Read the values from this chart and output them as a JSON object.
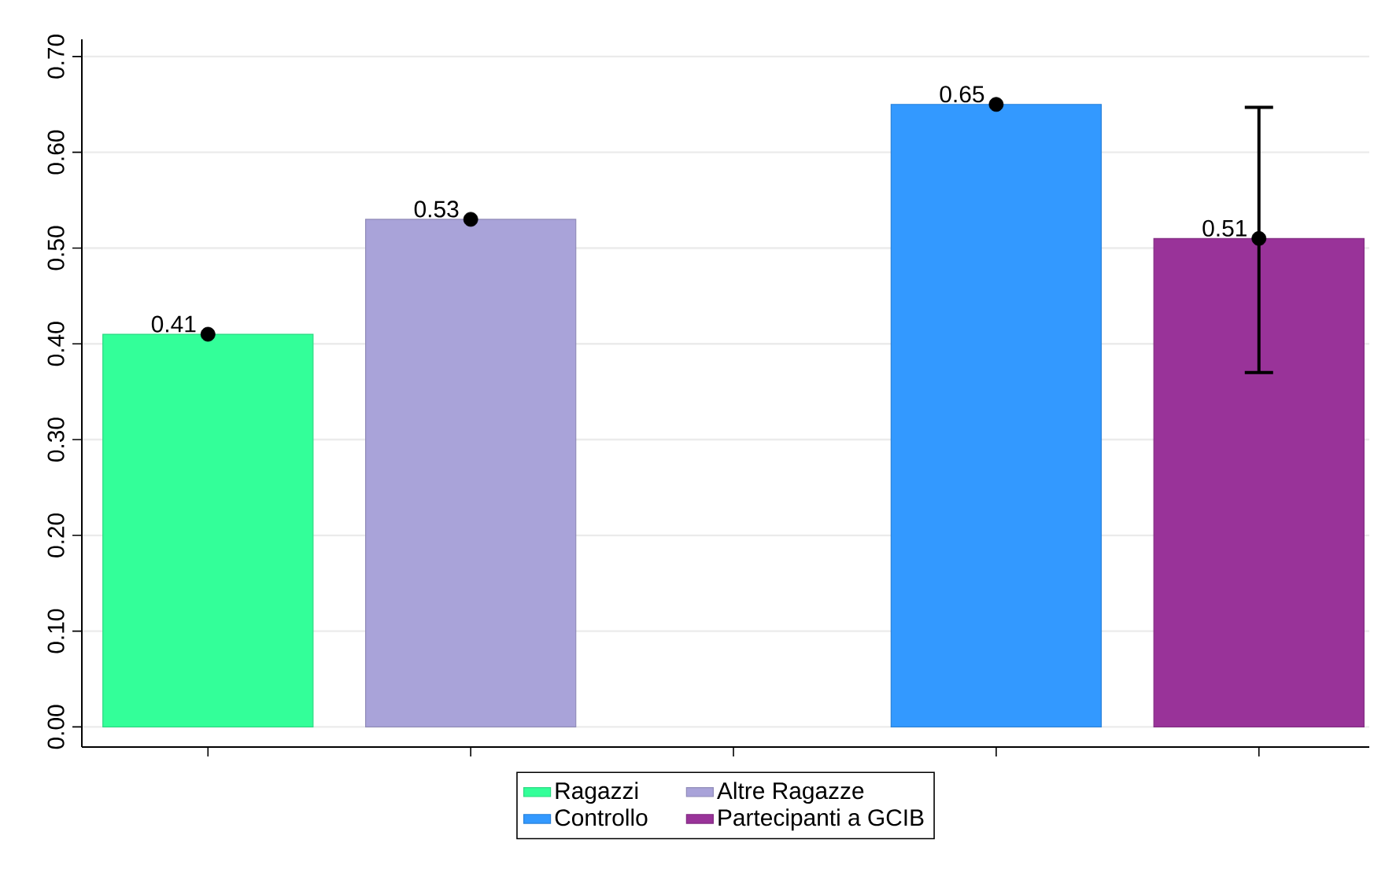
{
  "chart_data": {
    "type": "bar",
    "categories": [
      null,
      null,
      null,
      null,
      null
    ],
    "series": [
      {
        "name": "Ragazzi",
        "color": "#33ff99",
        "values": [
          0.41,
          null,
          null,
          null,
          null
        ],
        "value_labels": [
          "0.41",
          null,
          null,
          null,
          null
        ]
      },
      {
        "name": "Altre Ragazze",
        "color": "#a9a3d9",
        "values": [
          null,
          0.53,
          null,
          null,
          null
        ],
        "value_labels": [
          null,
          "0.53",
          null,
          null,
          null
        ]
      },
      {
        "name": "Controllo",
        "color": "#3399ff",
        "values": [
          null,
          null,
          null,
          0.65,
          null
        ],
        "value_labels": [
          null,
          null,
          null,
          "0.65",
          null
        ]
      },
      {
        "name": "Partecipanti a GCIB",
        "color": "#993399",
        "values": [
          null,
          null,
          null,
          null,
          0.51
        ],
        "value_labels": [
          null,
          null,
          null,
          null,
          "0.51"
        ]
      },
      {
        "type": "scatter",
        "color": "#000000",
        "values": [
          0.41,
          0.53,
          null,
          0.65,
          0.51
        ],
        "errors": [
          null,
          null,
          null,
          null,
          [
            0.37,
            0.647
          ]
        ]
      }
    ],
    "ylim": [
      -0.021,
      0.718
    ],
    "yticks": [
      {
        "value": 0,
        "label": "0.00"
      },
      {
        "value": 0.1,
        "label": "0.10"
      },
      {
        "value": 0.2,
        "label": "0.20"
      },
      {
        "value": 0.3,
        "label": "0.30"
      },
      {
        "value": 0.4,
        "label": "0.40"
      },
      {
        "value": 0.5,
        "label": "0.50"
      },
      {
        "value": 0.6,
        "label": "0.60"
      },
      {
        "value": 0.7,
        "label": "0.70"
      }
    ],
    "grid": "y",
    "legend": "bottom",
    "tick_labels": "y",
    "marker": "circle"
  }
}
